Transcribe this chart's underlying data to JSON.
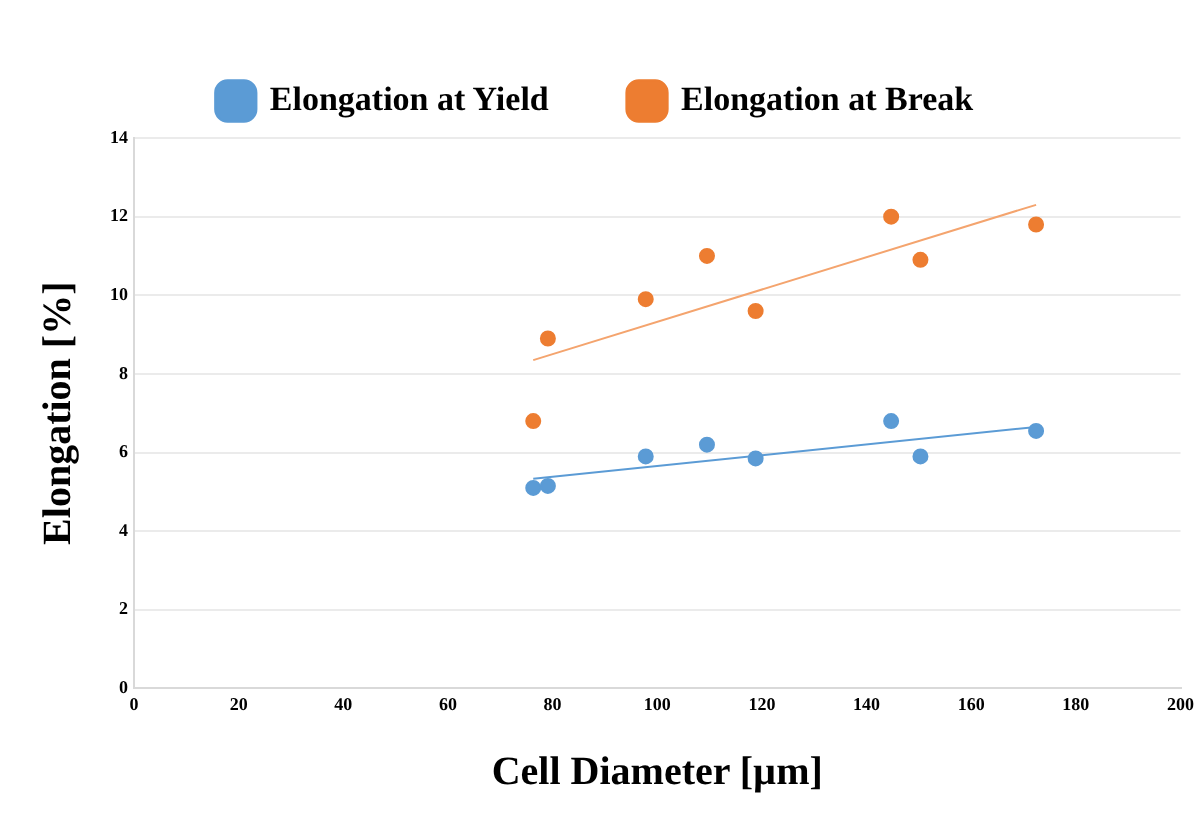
{
  "chart_data": {
    "type": "scatter",
    "xlabel": "Cell Diameter [µm]",
    "ylabel": "Elongation [%]",
    "xlim": [
      0,
      200
    ],
    "xticks": [
      0,
      20,
      40,
      60,
      80,
      100,
      120,
      140,
      160,
      180,
      200
    ],
    "ylim": [
      0,
      14
    ],
    "yticks": [
      0,
      2,
      4,
      6,
      8,
      10,
      12,
      14
    ],
    "grid": "y",
    "legend": "top",
    "series": [
      {
        "name": "Elongation at Yield",
        "marker": "circle",
        "color": "#5b9bd5",
        "x": [
          76.3,
          79.1,
          97.8,
          109.5,
          118.8,
          144.7,
          150.3,
          172.4
        ],
        "values": [
          5.1,
          5.15,
          5.9,
          6.2,
          5.85,
          6.8,
          5.9,
          6.55
        ]
      },
      {
        "name": "Elongation at Break",
        "marker": "circle",
        "color": "#ed7d31",
        "x": [
          76.3,
          79.1,
          97.8,
          109.5,
          118.8,
          144.7,
          150.3,
          172.4
        ],
        "values": [
          6.8,
          8.9,
          9.9,
          11.0,
          9.6,
          12.0,
          10.9,
          11.8
        ]
      },
      {
        "type": "line",
        "marker": "none",
        "color": "#5b9bd5",
        "x": [
          76.3,
          172.4
        ],
        "values": [
          5.33,
          6.65
        ]
      },
      {
        "type": "line",
        "marker": "none",
        "color": "#f4a46e",
        "x": [
          76.3,
          172.4
        ],
        "values": [
          8.35,
          12.3
        ]
      }
    ]
  }
}
